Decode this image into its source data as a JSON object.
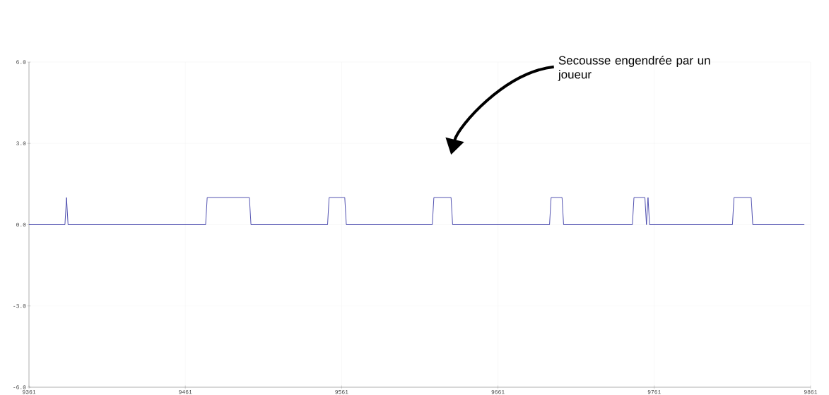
{
  "chart_data": {
    "type": "line",
    "x": [
      9361,
      9384,
      9385,
      9386,
      9474,
      9475,
      9502,
      9503,
      9552,
      9553,
      9563,
      9564,
      9619,
      9620,
      9631,
      9632,
      9694,
      9695,
      9702,
      9703,
      9747,
      9748,
      9755,
      9756,
      9757,
      9758,
      9811,
      9812,
      9823,
      9824,
      9857
    ],
    "series": [
      {
        "color": "#4040a8",
        "values": [
          0,
          0,
          1,
          0,
          0,
          1,
          1,
          0,
          0,
          1,
          1,
          0,
          0,
          1,
          1,
          0,
          0,
          1,
          1,
          0,
          0,
          1,
          1,
          0,
          1,
          0,
          0,
          1,
          1,
          0,
          0
        ]
      }
    ],
    "xlim": [
      9361,
      9861
    ],
    "xticks": [
      9361,
      9461,
      9561,
      9661,
      9761,
      9861
    ],
    "ylim": [
      -6,
      6
    ],
    "yticks": [
      {
        "value": -6,
        "label": "-6.0"
      },
      {
        "value": -3,
        "label": "-3.0"
      },
      {
        "value": 0,
        "label": "0.0"
      },
      {
        "value": 3,
        "label": "3.0"
      },
      {
        "value": 6,
        "label": "6.0"
      }
    ],
    "grid": true,
    "marker": "none",
    "line_style": "solid",
    "annotations": [
      "Secousse engendrée par un joueur"
    ]
  }
}
